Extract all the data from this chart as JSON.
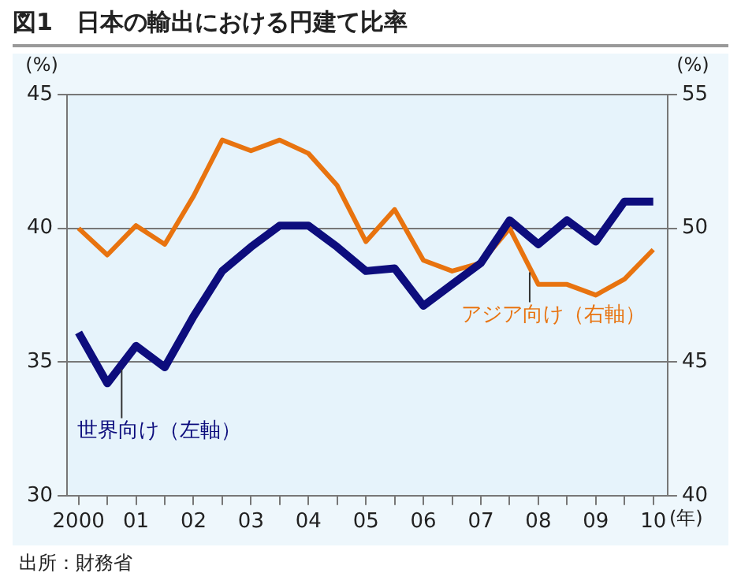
{
  "chart_data": {
    "type": "line",
    "title": "図1　日本の輸出における円建て比率",
    "ylabel": "(%)",
    "y2label": "(%)",
    "xlabel": "(年)",
    "annotations": [
      "出所：財務省"
    ],
    "x": [
      2000,
      2000.5,
      2001,
      2001.5,
      2002,
      2002.5,
      2003,
      2003.5,
      2004,
      2004.5,
      2005,
      2005.5,
      2006,
      2006.5,
      2007,
      2007.5,
      2008,
      2008.5,
      2009,
      2009.5,
      2010
    ],
    "series": [
      {
        "name": "世界向け（左軸）",
        "color": "#0d0d7d",
        "values": [
          36.1,
          34.2,
          35.6,
          34.8,
          36.7,
          38.4,
          39.3,
          40.1,
          40.1,
          39.3,
          38.4,
          38.5,
          37.1,
          37.9,
          38.7,
          40.3,
          39.4,
          40.3,
          39.5,
          41.0,
          41.0
        ]
      },
      {
        "name": "アジア向け（右軸）",
        "color": "#e8730f",
        "axis": "y2",
        "values": [
          50.0,
          49.0,
          50.1,
          49.4,
          51.2,
          53.3,
          52.9,
          53.3,
          52.8,
          51.6,
          49.5,
          50.7,
          48.8,
          48.4,
          48.7,
          50.0,
          47.9,
          47.9,
          47.5,
          48.1,
          49.2
        ]
      }
    ],
    "xlim": [
      1999.8,
      2010.25
    ],
    "xticks": [
      {
        "value": 2000,
        "label": "2000"
      },
      {
        "value": 2000.5,
        "label": null
      },
      {
        "value": 2001,
        "label": "01"
      },
      {
        "value": 2001.5,
        "label": null
      },
      {
        "value": 2002,
        "label": "02"
      },
      {
        "value": 2002.5,
        "label": null
      },
      {
        "value": 2003,
        "label": "03"
      },
      {
        "value": 2003.5,
        "label": null
      },
      {
        "value": 2004,
        "label": "04"
      },
      {
        "value": 2004.5,
        "label": null
      },
      {
        "value": 2005,
        "label": "05"
      },
      {
        "value": 2005.5,
        "label": null
      },
      {
        "value": 2006,
        "label": "06"
      },
      {
        "value": 2006.5,
        "label": null
      },
      {
        "value": 2007,
        "label": "07"
      },
      {
        "value": 2007.5,
        "label": null
      },
      {
        "value": 2008,
        "label": "08"
      },
      {
        "value": 2008.5,
        "label": null
      },
      {
        "value": 2009,
        "label": "09"
      },
      {
        "value": 2009.5,
        "label": null
      },
      {
        "value": 2010,
        "label": "10"
      }
    ],
    "ylim": [
      30,
      45
    ],
    "yticks": [
      30,
      35,
      40,
      45
    ],
    "y2lim": [
      40,
      55
    ],
    "y2ticks": [
      40,
      45,
      50,
      55
    ],
    "grid": "y",
    "marker": "none",
    "line_style": "solid",
    "legend": false
  }
}
